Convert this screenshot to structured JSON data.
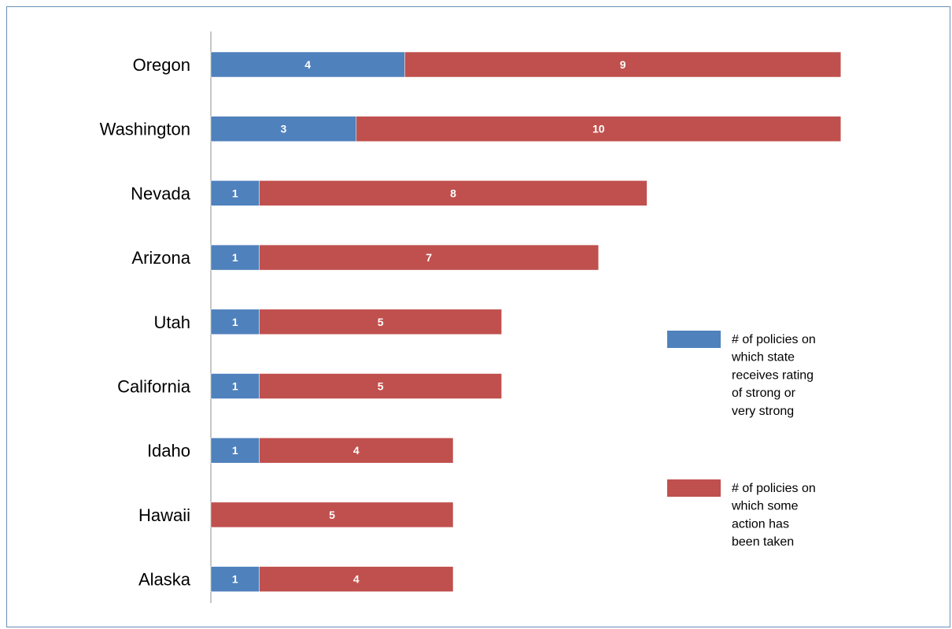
{
  "chart_data": {
    "type": "bar",
    "orientation": "horizontal",
    "stacked": true,
    "categories": [
      "Oregon",
      "Washington",
      "Nevada",
      "Arizona",
      "Utah",
      "California",
      "Idaho",
      "Hawaii",
      "Alaska"
    ],
    "series": [
      {
        "name": "# of policies on which state receives rating of strong or very strong",
        "name_lines": [
          "# of policies on",
          "which state",
          "receives rating",
          "of strong or",
          "very strong"
        ],
        "color": "#4f81bd",
        "values": [
          4,
          3,
          1,
          1,
          1,
          1,
          1,
          0,
          1
        ],
        "labels": [
          "4",
          "3",
          "1",
          "1",
          "1",
          "1",
          "1",
          "",
          "1"
        ]
      },
      {
        "name": "# of policies on which some action has been taken",
        "name_lines": [
          "# of policies on",
          "which some",
          "action has",
          "been taken"
        ],
        "color": "#c0504d",
        "values": [
          9,
          10,
          8,
          7,
          5,
          5,
          4,
          5,
          4
        ],
        "labels": [
          "9",
          "10",
          "8",
          "7",
          "5",
          "5",
          "4",
          "5",
          "4"
        ]
      }
    ],
    "xlim": [
      0,
      13
    ],
    "grid": false,
    "legend_position": "right",
    "title": "",
    "xlabel": "",
    "ylabel": ""
  }
}
